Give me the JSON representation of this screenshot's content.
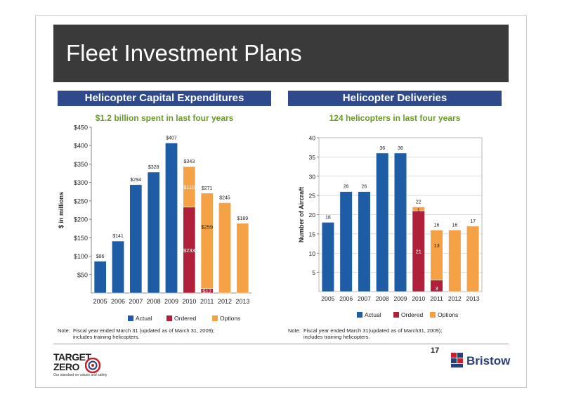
{
  "page": {
    "title": "Fleet Investment Plans",
    "page_number": "17"
  },
  "left_panel": {
    "header": "Helicopter Capital Expenditures",
    "subtitle": "$1.2 billion spent in last four years",
    "note_label": "Note:",
    "note_line1": "Fiscal year ended March 31 (updated as of March 31, 2009);",
    "note_line2": "includes training helicopters."
  },
  "right_panel": {
    "header": "Helicopter Deliveries",
    "subtitle": "124 helicopters in last four years",
    "note_label": "Note:",
    "note_line1": "Fiscal year ended March 31(updated as of March31, 2009);",
    "note_line2": "includes training helicopters."
  },
  "logos": {
    "target_zero_line1": "TARGET",
    "target_zero_line2": "ZERO",
    "target_zero_tagline": "Our standard on values and safety",
    "bristow": "Bristow"
  },
  "colors": {
    "actual": "#1f5ca6",
    "ordered": "#b0203a",
    "options": "#f5a146",
    "header": "#2e4a8a",
    "subtitle": "#6a9a2a"
  },
  "chart_data": [
    {
      "type": "bar",
      "stacked": true,
      "categories": [
        "2005",
        "2006",
        "2007",
        "2008",
        "2009",
        "2010",
        "2011",
        "2012",
        "2013"
      ],
      "series": [
        {
          "name": "Actual",
          "values": [
            86,
            141,
            294,
            328,
            407,
            0,
            0,
            0,
            0
          ]
        },
        {
          "name": "Ordered",
          "values": [
            0,
            0,
            0,
            0,
            0,
            233,
            12,
            0,
            0
          ]
        },
        {
          "name": "Options",
          "values": [
            0,
            0,
            0,
            0,
            0,
            110,
            259,
            245,
            189
          ]
        }
      ],
      "total_labels": [
        "$86",
        "$141",
        "$294",
        "$328",
        "$407",
        "$343",
        "$271",
        "$245",
        "$189"
      ],
      "segment_labels": [
        "$233",
        "$110",
        "$12",
        "$259"
      ],
      "title": "$1.2 billion spent in last four years",
      "ylabel": "$ in millions",
      "ylim": [
        0,
        450
      ],
      "yticks": [
        50,
        100,
        150,
        200,
        250,
        300,
        350,
        400,
        450
      ],
      "ytick_labels": [
        "$50",
        "$100",
        "$150",
        "$200",
        "$250",
        "$300",
        "$350",
        "$400",
        "$450"
      ],
      "grid": false,
      "legend": "bottom"
    },
    {
      "type": "bar",
      "stacked": true,
      "categories": [
        "2005",
        "2006",
        "2007",
        "2008",
        "2009",
        "2010",
        "2011",
        "2012",
        "2013"
      ],
      "series": [
        {
          "name": "Actual",
          "values": [
            18,
            26,
            26,
            36,
            36,
            0,
            0,
            0,
            0
          ]
        },
        {
          "name": "Ordered",
          "values": [
            0,
            0,
            0,
            0,
            0,
            21,
            3,
            0,
            0
          ]
        },
        {
          "name": "Options",
          "values": [
            0,
            0,
            0,
            0,
            0,
            1,
            13,
            16,
            17
          ]
        }
      ],
      "total_labels": [
        "18",
        "26",
        "26",
        "36",
        "36",
        "22",
        "16",
        "16",
        "17"
      ],
      "segment_labels": [
        "21",
        "1",
        "3",
        "13"
      ],
      "title": "124 helicopters in last four years",
      "ylabel": "Number of Aircraft",
      "ylim": [
        0,
        40
      ],
      "yticks": [
        5,
        10,
        15,
        20,
        25,
        30,
        35,
        40
      ],
      "ytick_labels": [
        "5",
        "10",
        "15",
        "20",
        "25",
        "30",
        "35",
        "40"
      ],
      "grid": true,
      "legend": "bottom"
    }
  ]
}
